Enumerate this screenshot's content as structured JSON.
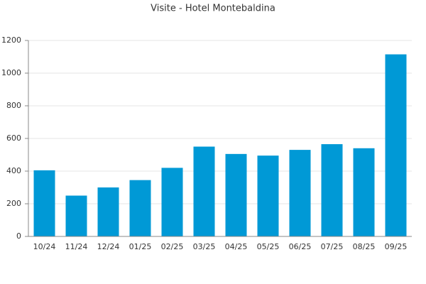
{
  "chart_data": {
    "type": "bar",
    "title": "Visite - Hotel Montebaldina",
    "categories": [
      "10/24",
      "11/24",
      "12/24",
      "01/25",
      "02/25",
      "03/25",
      "04/25",
      "05/25",
      "06/25",
      "07/25",
      "08/25",
      "09/25"
    ],
    "values": [
      405,
      250,
      300,
      345,
      420,
      550,
      505,
      495,
      530,
      565,
      540,
      1115
    ],
    "color": "#0099d6",
    "ylim": [
      0,
      1200
    ],
    "yticks": [
      0,
      200,
      400,
      600,
      800,
      1000,
      1200
    ],
    "grid": true
  }
}
